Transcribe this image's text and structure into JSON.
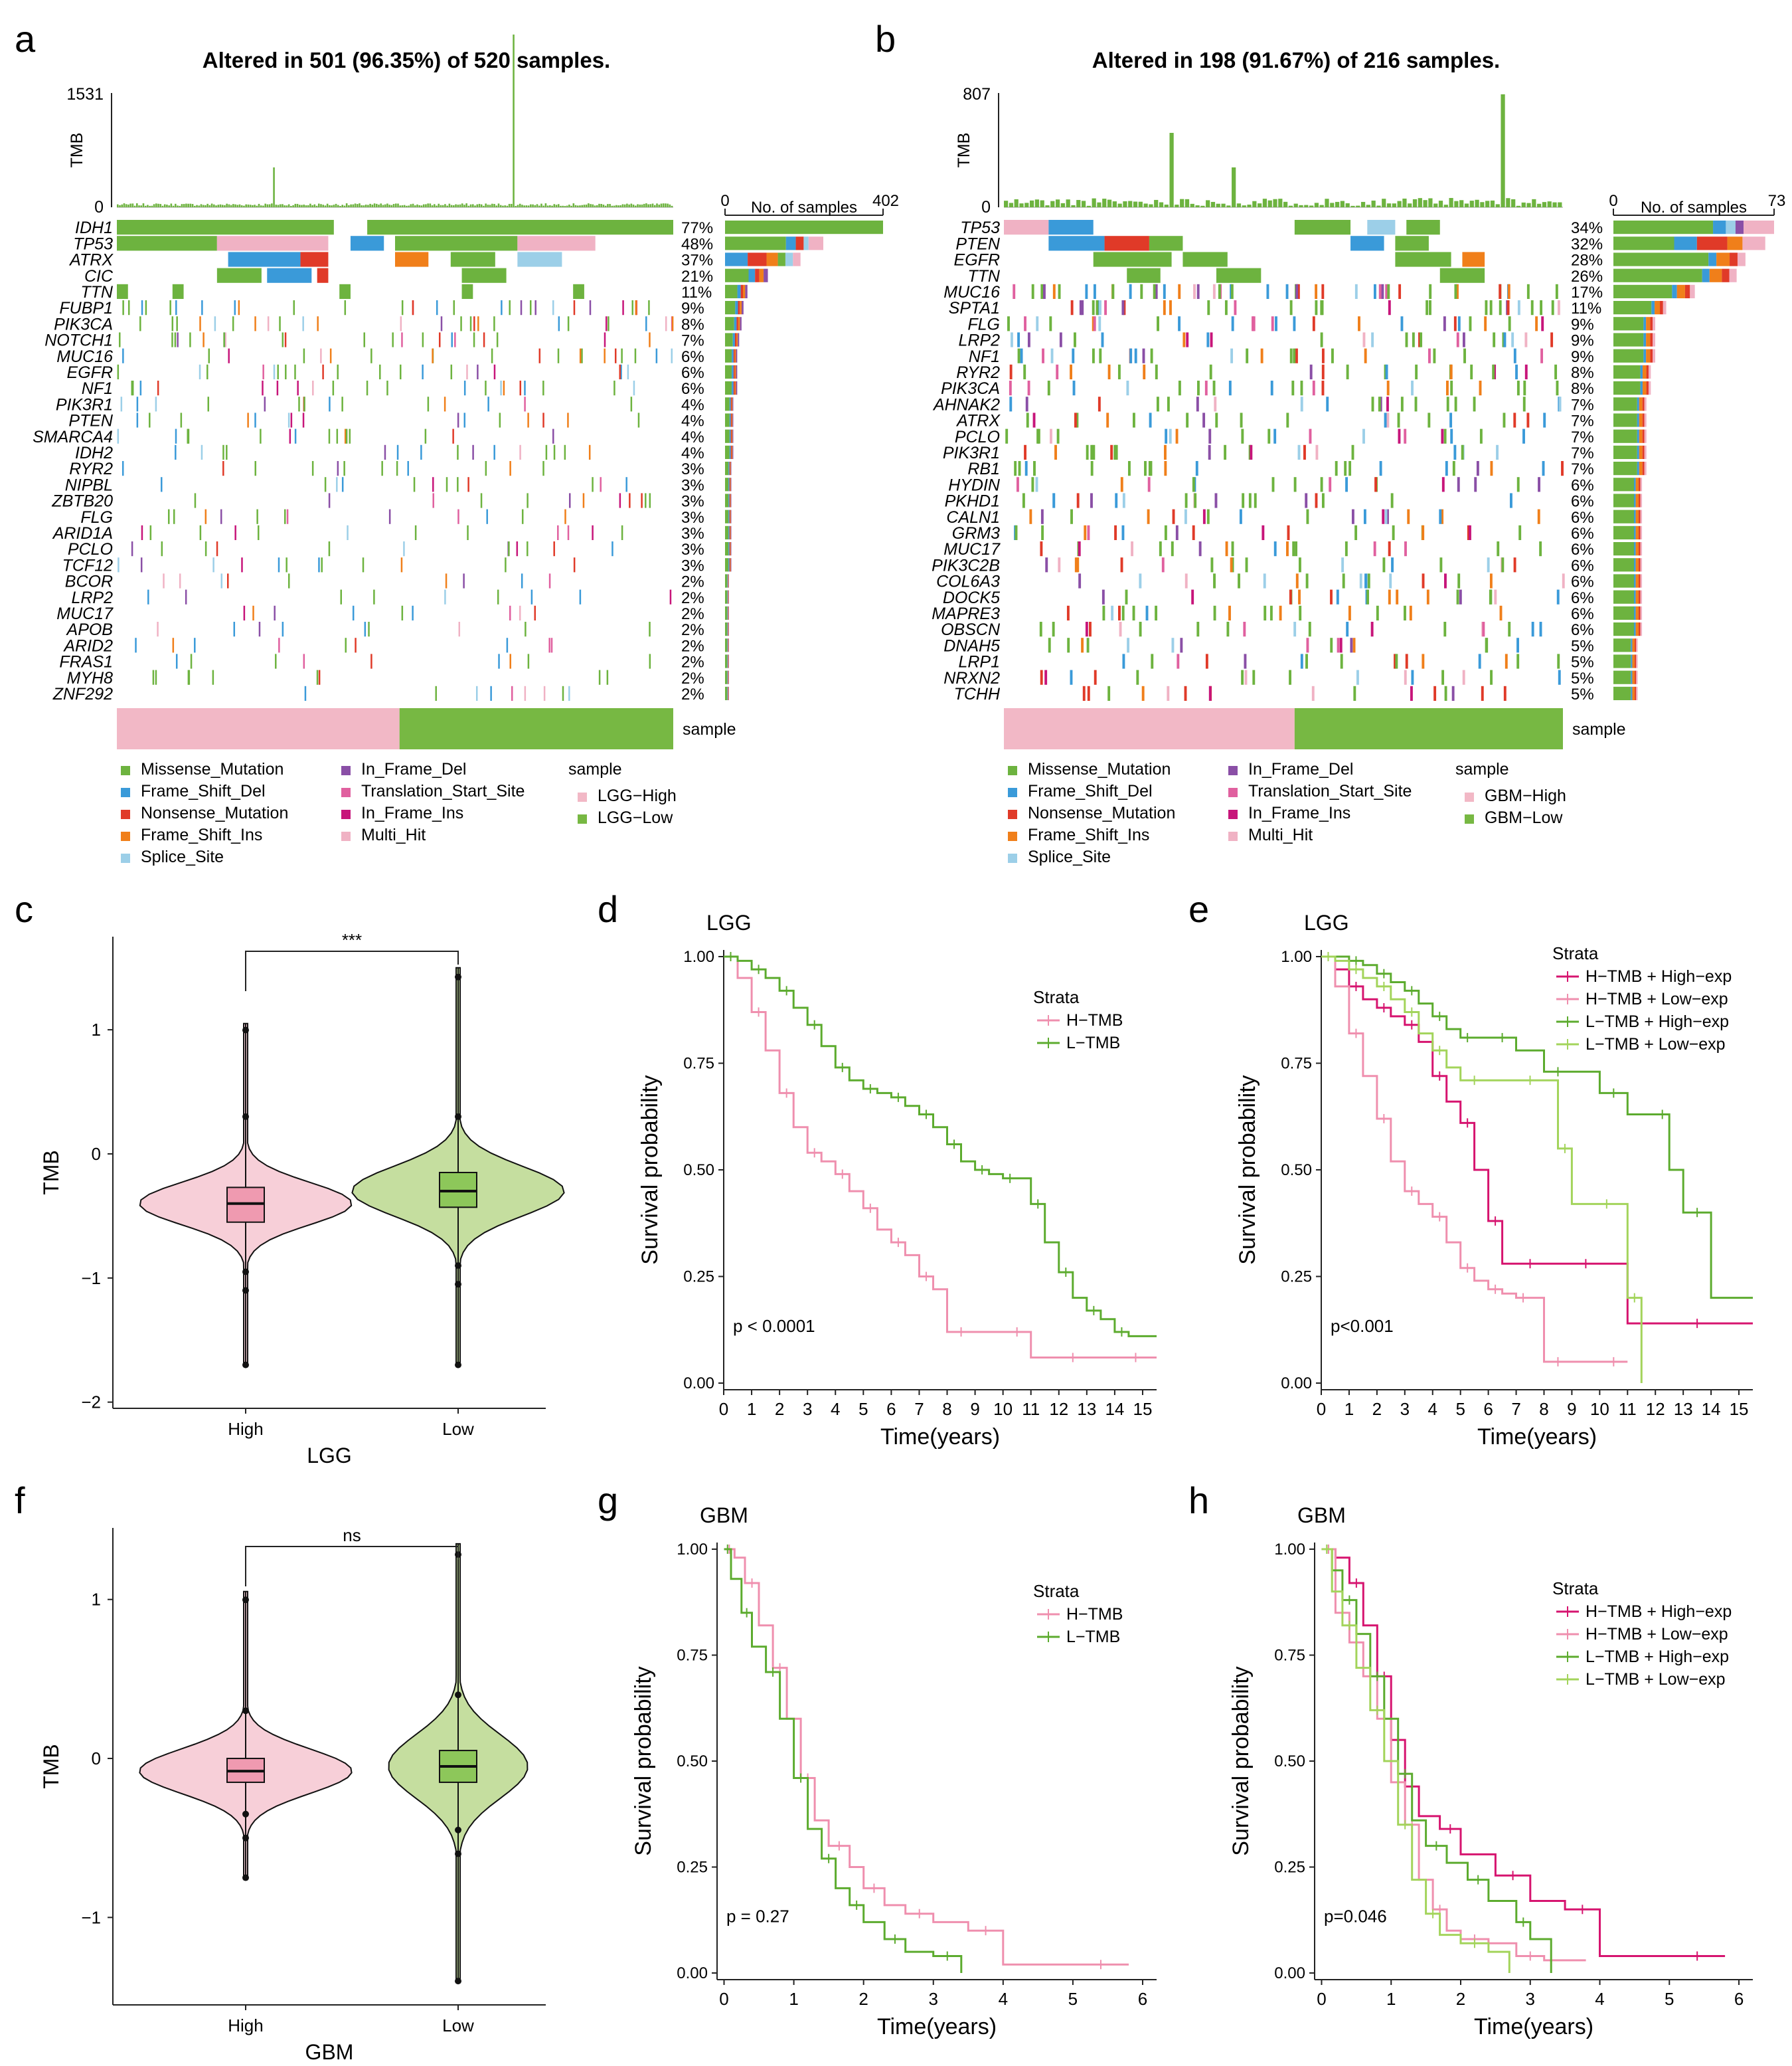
{
  "colors": {
    "Missense_Mutation": "#6db33f",
    "Frame_Shift_Del": "#3a9ad9",
    "Nonsense_Mutation": "#e03a28",
    "Frame_Shift_Ins": "#f07f1a",
    "Splice_Site": "#9ccfe8",
    "In_Frame_Del": "#8a4fa6",
    "Translation_Start_Site": "#e0609f",
    "In_Frame_Ins": "#c7157a",
    "Multi_Hit": "#f0b2c4",
    "high_pink": "#f2b8c6",
    "low_green": "#77b843",
    "violin_pink": "#f7cfd8",
    "violin_green": "#c5de9f",
    "h_tmb": "#ef8fae",
    "l_tmb": "#5cab2e",
    "hh": "#d6146f",
    "hl": "#ef8fae",
    "lh": "#5cab2e",
    "ll": "#a3d45b"
  },
  "panels": {
    "a": "a",
    "b": "b",
    "c": "c",
    "d": "d",
    "e": "e",
    "f": "f",
    "g": "g",
    "h": "h"
  },
  "oncoplots": [
    {
      "title": "Altered in 501 (96.35%) of 520 samples.",
      "tmb_max": "1531",
      "tmb_zero": "0",
      "tmb_label": "TMB",
      "bar_axis": {
        "min": "0",
        "max": "402",
        "label": "No. of samples"
      },
      "genes": [
        "IDH1",
        "TP53",
        "ATRX",
        "CIC",
        "TTN",
        "FUBP1",
        "PIK3CA",
        "NOTCH1",
        "MUC16",
        "EGFR",
        "NF1",
        "PIK3R1",
        "PTEN",
        "SMARCA4",
        "IDH2",
        "RYR2",
        "NIPBL",
        "ZBTB20",
        "FLG",
        "ARID1A",
        "PCLO",
        "TCF12",
        "BCOR",
        "LRP2",
        "MUC17",
        "APOB",
        "ARID2",
        "FRAS1",
        "MYH8",
        "ZNF292"
      ],
      "percents": [
        "77%",
        "48%",
        "37%",
        "21%",
        "11%",
        "9%",
        "8%",
        "7%",
        "6%",
        "6%",
        "6%",
        "4%",
        "4%",
        "4%",
        "4%",
        "3%",
        "3%",
        "3%",
        "3%",
        "3%",
        "3%",
        "3%",
        "2%",
        "2%",
        "2%",
        "2%",
        "2%",
        "2%",
        "2%",
        "2%"
      ],
      "counts": [
        402,
        250,
        192,
        109,
        57,
        47,
        42,
        36,
        31,
        31,
        31,
        21,
        21,
        21,
        21,
        16,
        16,
        16,
        16,
        16,
        16,
        16,
        10,
        10,
        10,
        10,
        10,
        10,
        10,
        10
      ],
      "sample_label": "sample",
      "legend_variants": [
        "Missense_Mutation",
        "Frame_Shift_Del",
        "Nonsense_Mutation",
        "Frame_Shift_Ins",
        "Splice_Site",
        "In_Frame_Del",
        "Translation_Start_Site",
        "In_Frame_Ins",
        "Multi_Hit"
      ],
      "legend_sample_title": "sample",
      "legend_groups": [
        "LGG−High",
        "LGG−Low"
      ]
    },
    {
      "title": "Altered in 198 (91.67%) of 216 samples.",
      "tmb_max": "807",
      "tmb_zero": "0",
      "tmb_label": "TMB",
      "bar_axis": {
        "min": "0",
        "max": "73",
        "label": "No. of samples"
      },
      "genes": [
        "TP53",
        "PTEN",
        "EGFR",
        "TTN",
        "MUC16",
        "SPTA1",
        "FLG",
        "LRP2",
        "NF1",
        "RYR2",
        "PIK3CA",
        "AHNAK2",
        "ATRX",
        "PCLO",
        "PIK3R1",
        "RB1",
        "HYDIN",
        "PKHD1",
        "CALN1",
        "GRM3",
        "MUC17",
        "PIK3C2B",
        "COL6A3",
        "DOCK5",
        "MAPRE3",
        "OBSCN",
        "DNAH5",
        "LRP1",
        "NRXN2",
        "TCHH"
      ],
      "percents": [
        "34%",
        "32%",
        "28%",
        "26%",
        "17%",
        "11%",
        "9%",
        "9%",
        "9%",
        "8%",
        "8%",
        "7%",
        "7%",
        "7%",
        "7%",
        "7%",
        "6%",
        "6%",
        "6%",
        "6%",
        "6%",
        "6%",
        "6%",
        "6%",
        "6%",
        "6%",
        "5%",
        "5%",
        "5%",
        "5%"
      ],
      "counts": [
        73,
        69,
        60,
        56,
        37,
        24,
        19,
        19,
        19,
        17,
        17,
        15,
        15,
        15,
        15,
        15,
        13,
        13,
        13,
        13,
        13,
        13,
        13,
        13,
        13,
        13,
        11,
        11,
        11,
        11
      ],
      "sample_label": "sample",
      "legend_variants": [
        "Missense_Mutation",
        "Frame_Shift_Del",
        "Nonsense_Mutation",
        "Frame_Shift_Ins",
        "Splice_Site",
        "In_Frame_Del",
        "Translation_Start_Site",
        "In_Frame_Ins",
        "Multi_Hit"
      ],
      "legend_sample_title": "sample",
      "legend_groups": [
        "GBM−High",
        "GBM−Low"
      ]
    }
  ],
  "chart_data": [
    {
      "panel": "c",
      "type": "violin",
      "xlabel": "LGG",
      "ylabel": "TMB",
      "categories": [
        "High",
        "Low"
      ],
      "yticks": [
        "1",
        "0",
        "−1",
        "−2"
      ],
      "ylim": [
        -2.05,
        1.75
      ],
      "significance": "***",
      "box": [
        {
          "q1": -0.55,
          "median": -0.4,
          "q3": -0.27,
          "wmin": -0.95,
          "wmax": 0.3
        },
        {
          "q1": -0.43,
          "median": -0.3,
          "q3": -0.15,
          "wmin": -0.9,
          "wmax": 0.3
        }
      ],
      "range": [
        [
          -1.7,
          1.05
        ],
        [
          -1.7,
          1.5
        ]
      ]
    },
    {
      "panel": "f",
      "type": "violin",
      "xlabel": "GBM",
      "ylabel": "TMB",
      "categories": [
        "High",
        "Low"
      ],
      "yticks": [
        "1",
        "0",
        "−1"
      ],
      "ylim": [
        -1.55,
        1.45
      ],
      "significance": "ns",
      "box": [
        {
          "q1": -0.15,
          "median": -0.08,
          "q3": 0.0,
          "wmin": -0.35,
          "wmax": 0.3
        },
        {
          "q1": -0.15,
          "median": -0.05,
          "q3": 0.05,
          "wmin": -0.45,
          "wmax": 0.4
        }
      ],
      "range": [
        [
          -0.75,
          1.05
        ],
        [
          -1.4,
          1.35
        ]
      ]
    },
    {
      "panel": "d",
      "type": "line",
      "title": "LGG",
      "xlabel": "Time(years)",
      "ylabel": "Survival probability",
      "xticks": [
        "0",
        "1",
        "2",
        "3",
        "4",
        "5",
        "6",
        "7",
        "8",
        "9",
        "10",
        "11",
        "12",
        "13",
        "14",
        "15"
      ],
      "yticks": [
        "0.00",
        "0.25",
        "0.50",
        "0.75",
        "1.00"
      ],
      "xlim": [
        0,
        15.5
      ],
      "ylim": [
        0,
        1
      ],
      "pvalue": "p < 0.0001",
      "legend_title": "Strata",
      "series": [
        {
          "name": "H−TMB",
          "color": "h_tmb",
          "x": [
            0,
            0.5,
            1,
            1.5,
            2,
            2.5,
            3,
            3.5,
            4,
            4.5,
            5,
            5.5,
            6,
            6.5,
            7,
            7.5,
            8,
            9,
            10,
            11,
            12,
            13,
            14,
            15.5
          ],
          "y": [
            1,
            0.95,
            0.87,
            0.78,
            0.68,
            0.6,
            0.54,
            0.52,
            0.49,
            0.45,
            0.41,
            0.36,
            0.33,
            0.3,
            0.25,
            0.22,
            0.12,
            0.12,
            0.12,
            0.06,
            0.06,
            0.06,
            0.06,
            0.06
          ]
        },
        {
          "name": "L−TMB",
          "color": "l_tmb",
          "x": [
            0,
            0.5,
            1,
            1.5,
            2,
            2.5,
            3,
            3.5,
            4,
            4.5,
            5,
            5.5,
            6,
            6.5,
            7,
            7.5,
            8,
            8.5,
            9,
            9.5,
            10,
            10.5,
            11,
            11.5,
            12,
            12.5,
            13,
            13.5,
            14,
            14.5,
            15.5
          ],
          "y": [
            1,
            0.99,
            0.97,
            0.95,
            0.92,
            0.88,
            0.84,
            0.79,
            0.74,
            0.71,
            0.69,
            0.68,
            0.67,
            0.65,
            0.63,
            0.6,
            0.56,
            0.52,
            0.5,
            0.49,
            0.48,
            0.48,
            0.42,
            0.33,
            0.26,
            0.2,
            0.17,
            0.15,
            0.12,
            0.11,
            0.11
          ]
        }
      ]
    },
    {
      "panel": "e",
      "type": "line",
      "title": "LGG",
      "xlabel": "Time(years)",
      "ylabel": "Survival probability",
      "xticks": [
        "0",
        "1",
        "2",
        "3",
        "4",
        "5",
        "6",
        "7",
        "8",
        "9",
        "10",
        "11",
        "12",
        "13",
        "14",
        "15"
      ],
      "yticks": [
        "0.00",
        "0.25",
        "0.50",
        "0.75",
        "1.00"
      ],
      "xlim": [
        0,
        15.5
      ],
      "ylim": [
        0,
        1
      ],
      "pvalue": "p<0.001",
      "legend_title": "Strata",
      "series": [
        {
          "name": "H−TMB + High−exp",
          "color": "hh",
          "x": [
            0,
            0.5,
            1,
            1.5,
            2,
            2.5,
            3,
            3.5,
            4,
            4.5,
            5,
            5.5,
            6,
            6.5,
            7,
            8,
            9,
            10,
            11,
            12,
            13,
            14,
            15.5
          ],
          "y": [
            1,
            0.97,
            0.93,
            0.9,
            0.88,
            0.86,
            0.84,
            0.8,
            0.72,
            0.66,
            0.61,
            0.5,
            0.38,
            0.28,
            0.28,
            0.28,
            0.28,
            0.28,
            0.14,
            0.14,
            0.14,
            0.14,
            0.14
          ]
        },
        {
          "name": "H−TMB + Low−exp",
          "color": "hl",
          "x": [
            0,
            0.5,
            1,
            1.5,
            2,
            2.5,
            3,
            3.5,
            4,
            4.5,
            5,
            5.5,
            6,
            6.5,
            7,
            7.5,
            8,
            9,
            10,
            11
          ],
          "y": [
            1,
            0.93,
            0.82,
            0.72,
            0.62,
            0.52,
            0.45,
            0.42,
            0.39,
            0.33,
            0.27,
            0.24,
            0.22,
            0.21,
            0.2,
            0.2,
            0.05,
            0.05,
            0.05,
            0.05
          ]
        },
        {
          "name": "L−TMB + High−exp",
          "color": "lh",
          "x": [
            0,
            0.5,
            1,
            1.5,
            2,
            2.5,
            3,
            3.5,
            4,
            4.5,
            5,
            5.5,
            6,
            7,
            8,
            9,
            10,
            11,
            12,
            12.5,
            13,
            14,
            15.5
          ],
          "y": [
            1,
            1,
            0.99,
            0.98,
            0.96,
            0.94,
            0.92,
            0.89,
            0.86,
            0.83,
            0.81,
            0.81,
            0.81,
            0.78,
            0.73,
            0.73,
            0.68,
            0.63,
            0.63,
            0.5,
            0.4,
            0.2,
            0.2
          ]
        },
        {
          "name": "L−TMB + Low−exp",
          "color": "ll",
          "x": [
            0,
            0.5,
            1,
            1.5,
            2,
            2.5,
            3,
            3.5,
            4,
            4.5,
            5,
            6,
            7,
            8,
            8.5,
            9,
            10,
            10.5,
            11,
            11.5
          ],
          "y": [
            1,
            0.99,
            0.97,
            0.95,
            0.93,
            0.9,
            0.87,
            0.82,
            0.78,
            0.74,
            0.71,
            0.71,
            0.71,
            0.71,
            0.55,
            0.42,
            0.42,
            0.42,
            0.2,
            0.0
          ]
        }
      ]
    },
    {
      "panel": "g",
      "type": "line",
      "title": "GBM",
      "xlabel": "Time(years)",
      "ylabel": "Survival probability",
      "xticks": [
        "0",
        "1",
        "2",
        "3",
        "4",
        "5",
        "6"
      ],
      "yticks": [
        "0.00",
        "0.25",
        "0.50",
        "0.75",
        "1.00"
      ],
      "xlim": [
        -0.1,
        6.2
      ],
      "ylim": [
        0,
        1
      ],
      "pvalue": "p = 0.27",
      "legend_title": "Strata",
      "series": [
        {
          "name": "H−TMB",
          "color": "h_tmb",
          "x": [
            0,
            0.15,
            0.3,
            0.5,
            0.7,
            0.9,
            1.1,
            1.3,
            1.5,
            1.8,
            2.0,
            2.3,
            2.6,
            3.0,
            3.5,
            4.0,
            5.0,
            5.8
          ],
          "y": [
            1,
            0.98,
            0.92,
            0.82,
            0.72,
            0.6,
            0.46,
            0.36,
            0.3,
            0.25,
            0.2,
            0.16,
            0.14,
            0.12,
            0.1,
            0.02,
            0.02,
            0.02
          ]
        },
        {
          "name": "L−TMB",
          "color": "l_tmb",
          "x": [
            0,
            0.1,
            0.25,
            0.4,
            0.6,
            0.8,
            1.0,
            1.2,
            1.4,
            1.6,
            1.8,
            2.0,
            2.3,
            2.6,
            3.0,
            3.4
          ],
          "y": [
            1,
            0.93,
            0.85,
            0.77,
            0.71,
            0.6,
            0.46,
            0.34,
            0.27,
            0.2,
            0.16,
            0.12,
            0.08,
            0.05,
            0.04,
            0.0
          ]
        }
      ]
    },
    {
      "panel": "h",
      "type": "line",
      "title": "GBM",
      "xlabel": "Time(years)",
      "ylabel": "Survival probability",
      "xticks": [
        "0",
        "1",
        "2",
        "3",
        "4",
        "5",
        "6"
      ],
      "yticks": [
        "0.00",
        "0.25",
        "0.50",
        "0.75",
        "1.00"
      ],
      "xlim": [
        -0.1,
        6.2
      ],
      "ylim": [
        0,
        1
      ],
      "pvalue": "p=0.046",
      "legend_title": "Strata",
      "series": [
        {
          "name": "H−TMB + High−exp",
          "color": "hh",
          "x": [
            0,
            0.2,
            0.4,
            0.6,
            0.8,
            1.0,
            1.2,
            1.4,
            1.7,
            2.0,
            2.5,
            3.0,
            3.5,
            4.0,
            5.0,
            5.8
          ],
          "y": [
            1,
            0.98,
            0.92,
            0.82,
            0.7,
            0.55,
            0.44,
            0.37,
            0.34,
            0.28,
            0.23,
            0.17,
            0.15,
            0.04,
            0.04,
            0.04
          ]
        },
        {
          "name": "H−TMB + Low−exp",
          "color": "hl",
          "x": [
            0,
            0.2,
            0.4,
            0.6,
            0.8,
            1.0,
            1.2,
            1.4,
            1.6,
            1.8,
            2.0,
            2.4,
            2.8,
            3.2,
            3.8
          ],
          "y": [
            1,
            0.85,
            0.78,
            0.7,
            0.6,
            0.45,
            0.35,
            0.22,
            0.15,
            0.1,
            0.08,
            0.07,
            0.04,
            0.03,
            0.03
          ]
        },
        {
          "name": "L−TMB + High−exp",
          "color": "lh",
          "x": [
            0,
            0.15,
            0.3,
            0.5,
            0.7,
            0.9,
            1.1,
            1.3,
            1.5,
            1.8,
            2.1,
            2.4,
            2.8,
            3.0,
            3.3
          ],
          "y": [
            1,
            0.95,
            0.88,
            0.8,
            0.7,
            0.6,
            0.47,
            0.36,
            0.3,
            0.26,
            0.22,
            0.17,
            0.12,
            0.08,
            0.0
          ]
        },
        {
          "name": "L−TMB + Low−exp",
          "color": "ll",
          "x": [
            0,
            0.15,
            0.3,
            0.5,
            0.7,
            0.9,
            1.1,
            1.3,
            1.5,
            1.7,
            2.0,
            2.4,
            2.7
          ],
          "y": [
            1,
            0.9,
            0.82,
            0.72,
            0.62,
            0.5,
            0.35,
            0.22,
            0.14,
            0.09,
            0.07,
            0.05,
            0.0
          ]
        }
      ]
    }
  ]
}
